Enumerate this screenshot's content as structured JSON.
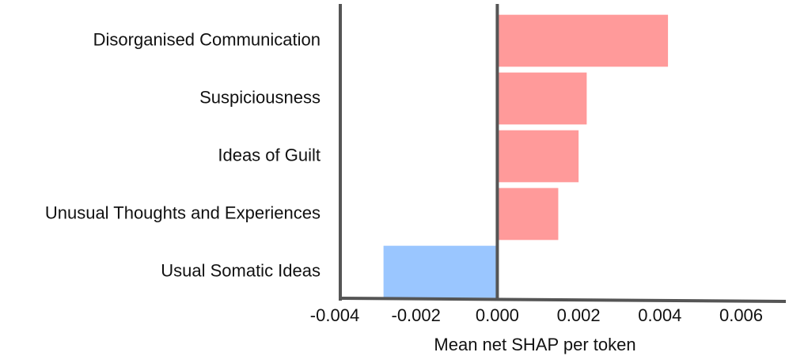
{
  "chart_data": {
    "type": "hbar",
    "categories": [
      "Disorganised Communication",
      "Suspiciousness",
      "Ideas of Guilt",
      "Unusual Thoughts and Experiences",
      "Usual Somatic Ideas"
    ],
    "values": [
      0.0042,
      0.0022,
      0.002,
      0.0015,
      -0.0028
    ],
    "colors": [
      "#ff9a9a",
      "#ff9a9a",
      "#ff9a9a",
      "#ff9a9a",
      "#9ac6ff"
    ],
    "xlabel": "Mean net SHAP per token",
    "xlim": [
      -0.004,
      0.0071
    ],
    "xticks": [
      -0.004,
      -0.002,
      {
        "value": 0,
        "label": "0.000"
      },
      0.002,
      0.004,
      0.006
    ],
    "grid": false
  }
}
